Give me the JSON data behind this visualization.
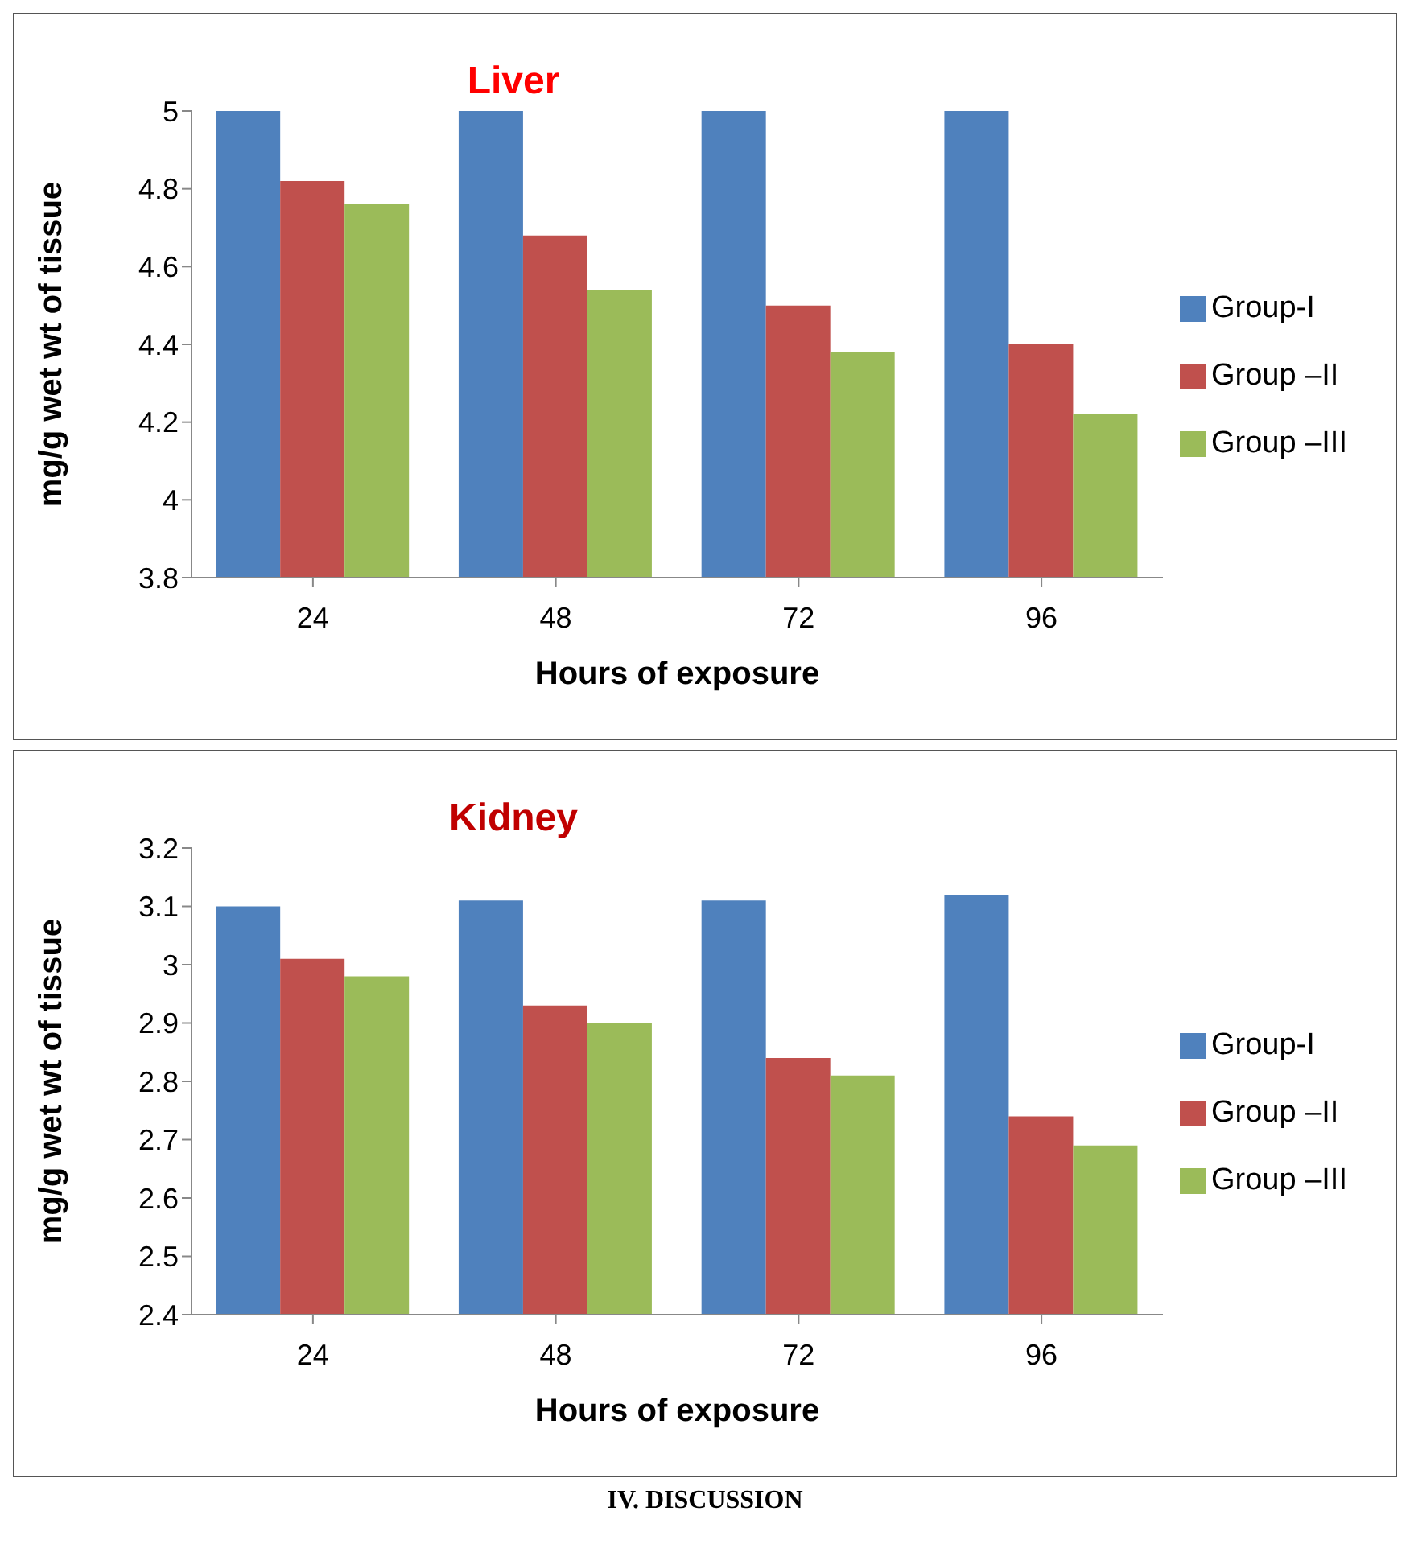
{
  "chart_data": [
    {
      "type": "bar",
      "title": "Liver",
      "xlabel": "Hours of exposure",
      "ylabel": "mg/g  wet  wt  of tissue",
      "categories": [
        "24",
        "48",
        "72",
        "96"
      ],
      "series": [
        {
          "name": "Group-I",
          "color": "#4f81bd",
          "values": [
            5.0,
            5.0,
            5.0,
            5.0
          ]
        },
        {
          "name": "Group –II",
          "color": "#c0504d",
          "values": [
            4.82,
            4.68,
            4.5,
            4.4
          ]
        },
        {
          "name": "Group –III",
          "color": "#9bbb59",
          "values": [
            4.76,
            4.54,
            4.38,
            4.22
          ]
        }
      ],
      "ylim": [
        3.8,
        5
      ],
      "yticks": [
        3.8,
        4,
        4.2,
        4.4,
        4.6,
        4.8,
        5
      ],
      "grid": false,
      "legend": "right"
    },
    {
      "type": "bar",
      "title": "Kidney",
      "xlabel": "Hours of exposure",
      "ylabel": "mg/g  wet wt of tissue",
      "categories": [
        "24",
        "48",
        "72",
        "96"
      ],
      "series": [
        {
          "name": "Group-I",
          "color": "#4f81bd",
          "values": [
            3.1,
            3.11,
            3.11,
            3.12
          ]
        },
        {
          "name": "Group –II",
          "color": "#c0504d",
          "values": [
            3.01,
            2.93,
            2.84,
            2.74
          ]
        },
        {
          "name": "Group –III",
          "color": "#9bbb59",
          "values": [
            2.98,
            2.9,
            2.81,
            2.69
          ]
        }
      ],
      "ylim": [
        2.4,
        3.2
      ],
      "yticks": [
        2.4,
        2.5,
        2.6,
        2.7,
        2.8,
        2.9,
        3,
        3.1,
        3.2
      ],
      "grid": false,
      "legend": "right",
      "annotations": [
        "IV. DISCUSSION"
      ]
    }
  ]
}
